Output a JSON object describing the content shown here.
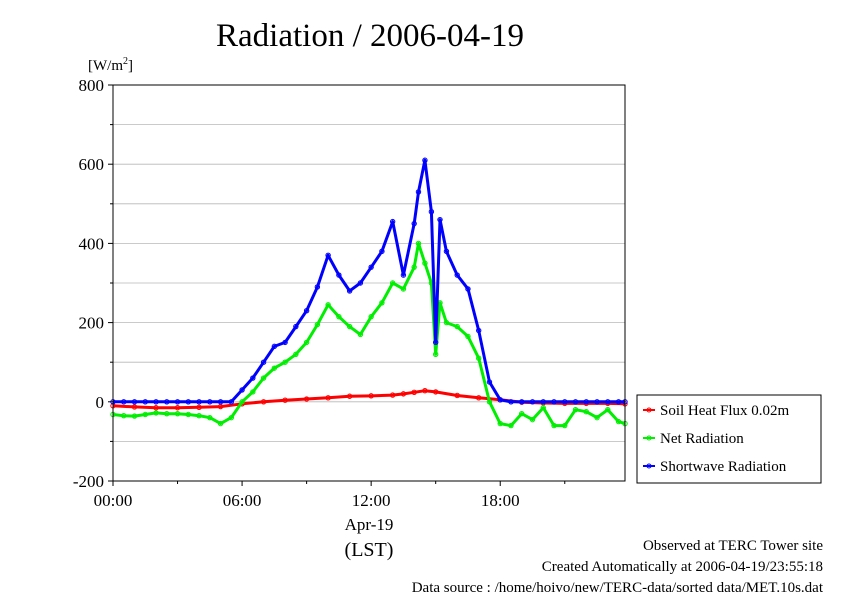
{
  "chart_data": {
    "type": "line",
    "title": "Radiation / 2006-04-19",
    "ylabel": "[W/m",
    "ylabel_sup": "2",
    "ylabel_close": "]",
    "ylim": [
      -200,
      800
    ],
    "yticks": [
      -200,
      0,
      200,
      400,
      600,
      800
    ],
    "ytick_labels": [
      "-200",
      "0",
      "200",
      "400",
      "600",
      "800"
    ],
    "xlim": [
      0,
      23.8
    ],
    "xticks": [
      0,
      6,
      12,
      18
    ],
    "xtick_labels": [
      "00:00",
      "06:00",
      "12:00",
      "18:00"
    ],
    "x_date_label": "Apr-19",
    "x_unit_label": "(LST)",
    "grid": true,
    "legend_position": "right",
    "series": [
      {
        "name": "Soil Heat Flux 0.02m",
        "color": "#ff0000",
        "x": [
          0,
          1,
          2,
          3,
          4,
          5,
          6,
          7,
          8,
          9,
          10,
          11,
          12,
          13,
          13.5,
          14,
          14.5,
          15,
          16,
          17,
          18,
          19,
          20,
          21,
          22,
          23,
          23.8
        ],
        "values": [
          -10,
          -13,
          -15,
          -15,
          -14,
          -12,
          -5,
          0,
          4,
          7,
          10,
          14,
          15,
          17,
          20,
          24,
          28,
          25,
          16,
          10,
          5,
          -1,
          -3,
          -4,
          -4,
          -4,
          -5
        ]
      },
      {
        "name": "Net Radiation",
        "color": "#00ee00",
        "x": [
          0,
          0.5,
          1,
          1.5,
          2,
          2.5,
          3,
          3.5,
          4,
          4.5,
          5,
          5.5,
          6,
          6.5,
          7,
          7.5,
          8,
          8.5,
          9,
          9.5,
          10,
          10.5,
          11,
          11.5,
          12,
          12.5,
          13,
          13.5,
          14,
          14.2,
          14.5,
          14.8,
          15,
          15.2,
          15.5,
          16,
          16.5,
          17,
          17.5,
          18,
          18.5,
          19,
          19.5,
          20,
          20.5,
          21,
          21.5,
          22,
          22.5,
          23,
          23.5,
          23.8
        ],
        "values": [
          -32,
          -35,
          -36,
          -32,
          -28,
          -30,
          -30,
          -32,
          -35,
          -40,
          -55,
          -40,
          0,
          25,
          60,
          85,
          100,
          120,
          150,
          195,
          245,
          215,
          190,
          170,
          215,
          250,
          300,
          285,
          340,
          400,
          350,
          300,
          120,
          250,
          200,
          190,
          165,
          110,
          0,
          -55,
          -60,
          -30,
          -45,
          -15,
          -60,
          -60,
          -20,
          -25,
          -40,
          -20,
          -50,
          -55
        ]
      },
      {
        "name": "Shortwave Radiation",
        "color": "#0000ff",
        "x": [
          0,
          0.5,
          1,
          1.5,
          2,
          2.5,
          3,
          3.5,
          4,
          4.5,
          5,
          5.5,
          6,
          6.5,
          7,
          7.5,
          8,
          8.5,
          9,
          9.5,
          10,
          10.5,
          11,
          11.5,
          12,
          12.5,
          13,
          13.5,
          14,
          14.2,
          14.5,
          14.8,
          15,
          15.2,
          15.5,
          16,
          16.5,
          17,
          17.5,
          18,
          18.5,
          19,
          19.5,
          20,
          20.5,
          21,
          21.5,
          22,
          22.5,
          23,
          23.5,
          23.8
        ],
        "values": [
          0,
          0,
          0,
          0,
          0,
          0,
          0,
          0,
          0,
          0,
          0,
          0,
          30,
          60,
          100,
          140,
          150,
          190,
          230,
          290,
          370,
          320,
          280,
          300,
          340,
          380,
          455,
          320,
          450,
          530,
          610,
          480,
          150,
          460,
          380,
          320,
          285,
          180,
          50,
          5,
          0,
          0,
          0,
          0,
          0,
          0,
          0,
          0,
          0,
          0,
          0,
          0
        ]
      }
    ]
  },
  "footer": {
    "observed": "Observed at TERC Tower site",
    "created": "Created Automatically at 2006-04-19/23:55:18",
    "source": "Data source : /home/hoivo/new/TERC-data/sorted  data/MET.10s.dat"
  }
}
